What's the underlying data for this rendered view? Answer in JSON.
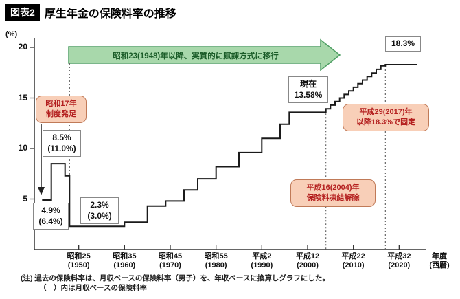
{
  "title": {
    "tag": "図表2",
    "text": "厚生年金の保険料率の推移"
  },
  "axes": {
    "y_unit": "(%)",
    "y_ticks": [
      5,
      10,
      15,
      20
    ],
    "x_ticks": [
      {
        "era": "昭和25",
        "west": "(1950)",
        "year": 1950
      },
      {
        "era": "昭和35",
        "west": "(1960)",
        "year": 1960
      },
      {
        "era": "昭和45",
        "west": "(1970)",
        "year": 1970
      },
      {
        "era": "昭和55",
        "west": "(1980)",
        "year": 1980
      },
      {
        "era": "平成2",
        "west": "(1990)",
        "year": 1990
      },
      {
        "era": "平成12",
        "west": "(2000)",
        "year": 2000
      },
      {
        "era": "平成22",
        "west": "(2010)",
        "year": 2010
      },
      {
        "era": "平成32",
        "west": "(2020)",
        "year": 2020
      }
    ],
    "x_end_label": {
      "line1": "年度",
      "line2": "(西暦)"
    }
  },
  "arrow_banner": {
    "text": "昭和23(1948)年以降、実質的に賦課方式に移行"
  },
  "callouts": {
    "showa17": {
      "line1": "昭和17年",
      "line2": "制度発足"
    },
    "rate_85": {
      "line1": "8.5%",
      "line2": "(11.0%)"
    },
    "rate_49": {
      "line1": "4.9%",
      "line2": "(6.4%)"
    },
    "rate_23": {
      "line1": "2.3%",
      "line2": "(3.0%)"
    },
    "current": {
      "line1": "現在",
      "line2": "13.58%"
    },
    "fixed_183": {
      "label": "18.3%"
    },
    "h29": {
      "line1": "平成29(2017)年",
      "line2": "以降18.3%で固定"
    },
    "h16": {
      "line1": "平成16(2004)年",
      "line2": "保険料凍結解除"
    }
  },
  "notes": {
    "line1": "(注) 過去の保険料率は、月収ベースの保険料率（男子）を、年収ベースに換算しグラフにした。",
    "line2": "（　）内は月収ベースの保険料率"
  },
  "colors": {
    "accent_green": "#a8d8ab",
    "green_border": "#4e9e63",
    "pink": "#f8cfb8",
    "pink_border": "#c07a58",
    "red_text": "#b41f1f",
    "line": "#1a1a1a"
  },
  "chart_data": {
    "type": "line",
    "style": "step",
    "title": "厚生年金の保険料率の推移",
    "ylabel": "%",
    "ylim": [
      0,
      20
    ],
    "x_range_years": [
      1940,
      2024
    ],
    "x_end_year": 2024,
    "steps": [
      {
        "year": 1942,
        "rate": 4.9,
        "monthly": 6.4
      },
      {
        "year": 1944,
        "rate": 8.5,
        "monthly": 11.0
      },
      {
        "year": 1947,
        "rate": 7.3
      },
      {
        "year": 1948,
        "rate": 2.3,
        "monthly": 3.0
      },
      {
        "year": 1960,
        "rate": 2.7
      },
      {
        "year": 1965,
        "rate": 4.3
      },
      {
        "year": 1969,
        "rate": 4.8
      },
      {
        "year": 1973,
        "rate": 5.9
      },
      {
        "year": 1976,
        "rate": 7.0
      },
      {
        "year": 1980,
        "rate": 8.2
      },
      {
        "year": 1985,
        "rate": 9.6
      },
      {
        "year": 1990,
        "rate": 11.0
      },
      {
        "year": 1994,
        "rate": 12.4
      },
      {
        "year": 1996,
        "rate": 13.58
      },
      {
        "year": 2004,
        "rate": 13.93
      },
      {
        "year": 2005,
        "rate": 14.29
      },
      {
        "year": 2006,
        "rate": 14.64
      },
      {
        "year": 2007,
        "rate": 15.0
      },
      {
        "year": 2008,
        "rate": 15.35
      },
      {
        "year": 2009,
        "rate": 15.7
      },
      {
        "year": 2010,
        "rate": 16.06
      },
      {
        "year": 2011,
        "rate": 16.41
      },
      {
        "year": 2012,
        "rate": 16.77
      },
      {
        "year": 2013,
        "rate": 17.12
      },
      {
        "year": 2014,
        "rate": 17.47
      },
      {
        "year": 2015,
        "rate": 17.83
      },
      {
        "year": 2016,
        "rate": 18.18
      },
      {
        "year": 2017,
        "rate": 18.3
      }
    ],
    "guides_years": [
      1948,
      2004,
      2017
    ],
    "annotations": [
      "昭和17年制度発足",
      "昭和23(1948)年以降、実質的に賦課方式に移行",
      "現在13.58%",
      "平成16(2004)年保険料凍結解除",
      "平成29(2017)年以降18.3%で固定",
      "18.3%"
    ]
  }
}
